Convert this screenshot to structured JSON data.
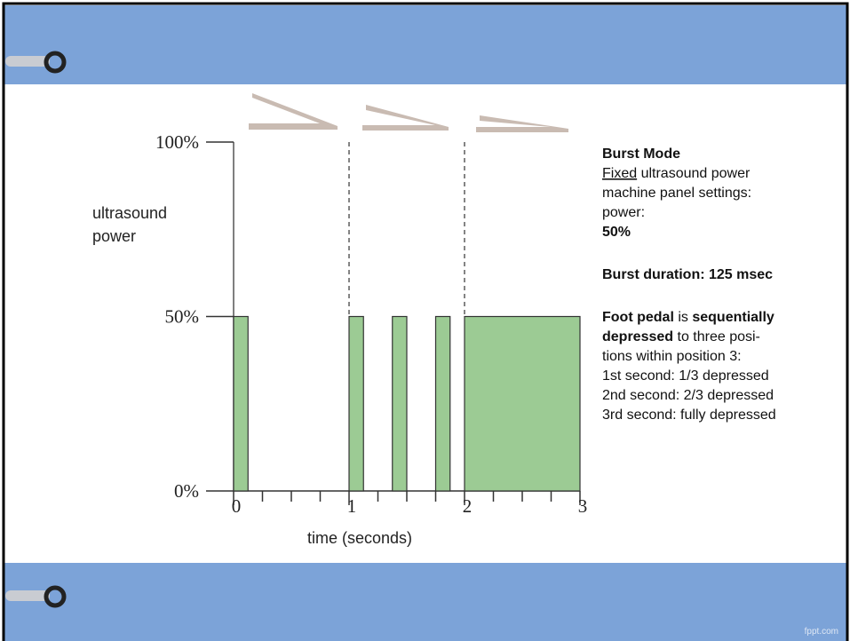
{
  "chart_data": {
    "type": "bar",
    "x_start": [
      0,
      1,
      1.375,
      1.75,
      2
    ],
    "x_end": [
      0.125,
      1.125,
      1.5,
      1.875,
      3
    ],
    "values": [
      50,
      50,
      50,
      50,
      50
    ],
    "color": "#9ccb94",
    "xlim": [
      0,
      3
    ],
    "xticks": [
      0,
      1,
      2,
      3
    ],
    "xminor_ticks": [
      0.25,
      0.5,
      0.75,
      1.25,
      1.5,
      1.75,
      2.25,
      2.5,
      2.75
    ],
    "ylim": [
      0,
      100
    ],
    "yticks": [
      {
        "value": 0,
        "label": "0%"
      },
      {
        "value": 50,
        "label": "50%"
      },
      {
        "value": 100,
        "label": "100%"
      }
    ],
    "dashed_lines": [
      1,
      2
    ],
    "ylabel": [
      "ultrasound",
      "power"
    ],
    "xlabel": "time (seconds)"
  },
  "panel": {
    "lines": [
      [
        {
          "text": "Burst Mode",
          "style": "bold"
        }
      ],
      [
        {
          "text": "Fixed",
          "style": "underline"
        },
        {
          "text": " ultrasound power",
          "style": "normal"
        }
      ],
      [
        {
          "text": "machine panel settings:",
          "style": "normal"
        }
      ],
      [
        {
          "text": "power:",
          "style": "normal"
        }
      ],
      [
        {
          "text": "50%",
          "style": "bold"
        }
      ],
      [
        {
          "text": "Burst duration: 125 msec",
          "style": "bold"
        }
      ],
      [
        {
          "text": "Foot pedal",
          "style": "bold"
        },
        {
          "text": " is ",
          "style": "normal"
        },
        {
          "text": "sequentially",
          "style": "bold"
        }
      ],
      [
        {
          "text": "depressed",
          "style": "bold"
        },
        {
          "text": " to three posi-",
          "style": "normal"
        }
      ],
      [
        {
          "text": "tions within position 3:",
          "style": "normal"
        }
      ],
      [
        {
          "text": "1st second: 1/3 depressed",
          "style": "normal"
        }
      ],
      [
        {
          "text": "2nd second: 2/3 depressed",
          "style": "normal"
        }
      ],
      [
        {
          "text": "3rd second: fully depressed",
          "style": "normal"
        }
      ]
    ]
  },
  "footer": {
    "watermark": "fppt.com"
  }
}
